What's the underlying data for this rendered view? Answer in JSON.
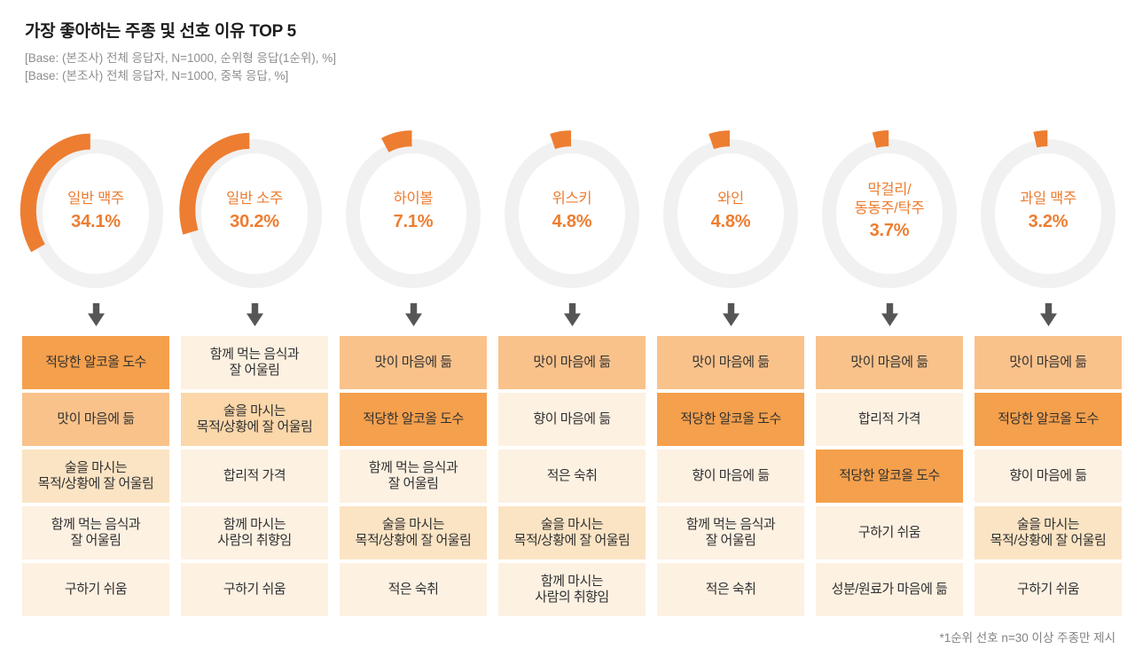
{
  "header": {
    "title": "가장 좋아하는 주종 및 선호 이유 TOP 5",
    "base_lines": [
      "[Base: (본조사) 전체 응답자, N=1000, 순위형 응답(1순위), %]",
      "[Base: (본조사) 전체 응답자, N=1000, 중복 응답, %]"
    ]
  },
  "footer": {
    "note": "*1순위 선호 n=30 이상 주종만 제시"
  },
  "colors": {
    "accent": "#ED7D31",
    "ring": "#F1F1F1",
    "arrow": "#565656",
    "shades": {
      "L1": "#F5A04C",
      "L2": "#FAC28B",
      "L3": "#FBD7AA",
      "L4": "#FBE4C4",
      "L5": "#FDF1E2"
    }
  },
  "chart_data": {
    "type": "pie",
    "subtype": "donut-small-multiples",
    "title": "가장 좋아하는 주종 및 선호 이유 TOP 5",
    "unit": "%",
    "items": [
      {
        "name": "일반 맥주",
        "value": 34.1,
        "reasons": [
          {
            "label": "적당한 알코올 도수",
            "shade": "L1"
          },
          {
            "label": "맛이 마음에 듦",
            "shade": "L2"
          },
          {
            "label": "술을 마시는\n목적/상황에 잘 어울림",
            "shade": "L4"
          },
          {
            "label": "함께 먹는 음식과\n잘 어울림",
            "shade": "L5"
          },
          {
            "label": "구하기 쉬움",
            "shade": "L5"
          }
        ]
      },
      {
        "name": "일반 소주",
        "value": 30.2,
        "reasons": [
          {
            "label": "함께 먹는 음식과\n잘 어울림",
            "shade": "L5"
          },
          {
            "label": "술을 마시는\n목적/상황에 잘 어울림",
            "shade": "L3"
          },
          {
            "label": "합리적 가격",
            "shade": "L5"
          },
          {
            "label": "함께 마시는\n사람의 취향임",
            "shade": "L5"
          },
          {
            "label": "구하기 쉬움",
            "shade": "L5"
          }
        ]
      },
      {
        "name": "하이볼",
        "value": 7.1,
        "reasons": [
          {
            "label": "맛이 마음에 듦",
            "shade": "L2"
          },
          {
            "label": "적당한 알코올 도수",
            "shade": "L1"
          },
          {
            "label": "함께 먹는 음식과\n잘 어울림",
            "shade": "L5"
          },
          {
            "label": "술을 마시는\n목적/상황에 잘 어울림",
            "shade": "L4"
          },
          {
            "label": "적은 숙취",
            "shade": "L5"
          }
        ]
      },
      {
        "name": "위스키",
        "value": 4.8,
        "reasons": [
          {
            "label": "맛이 마음에 듦",
            "shade": "L2"
          },
          {
            "label": "향이 마음에 듦",
            "shade": "L5"
          },
          {
            "label": "적은 숙취",
            "shade": "L5"
          },
          {
            "label": "술을 마시는\n목적/상황에 잘 어울림",
            "shade": "L4"
          },
          {
            "label": "함께 마시는\n사람의 취향임",
            "shade": "L5"
          }
        ]
      },
      {
        "name": "와인",
        "value": 4.8,
        "reasons": [
          {
            "label": "맛이 마음에 듦",
            "shade": "L2"
          },
          {
            "label": "적당한 알코올 도수",
            "shade": "L1"
          },
          {
            "label": "향이 마음에 듦",
            "shade": "L5"
          },
          {
            "label": "함께 먹는 음식과\n잘 어울림",
            "shade": "L5"
          },
          {
            "label": "적은 숙취",
            "shade": "L5"
          }
        ]
      },
      {
        "name": "막걸리/\n동동주/탁주",
        "value": 3.7,
        "reasons": [
          {
            "label": "맛이 마음에 듦",
            "shade": "L2"
          },
          {
            "label": "합리적 가격",
            "shade": "L5"
          },
          {
            "label": "적당한 알코올 도수",
            "shade": "L1"
          },
          {
            "label": "구하기 쉬움",
            "shade": "L5"
          },
          {
            "label": "성분/원료가 마음에 듦",
            "shade": "L5"
          }
        ]
      },
      {
        "name": "과일 맥주",
        "value": 3.2,
        "reasons": [
          {
            "label": "맛이 마음에 듦",
            "shade": "L2"
          },
          {
            "label": "적당한 알코올 도수",
            "shade": "L1"
          },
          {
            "label": "향이 마음에 듦",
            "shade": "L5"
          },
          {
            "label": "술을 마시는\n목적/상황에 잘 어울림",
            "shade": "L4"
          },
          {
            "label": "구하기 쉬움",
            "shade": "L5"
          }
        ]
      }
    ]
  }
}
